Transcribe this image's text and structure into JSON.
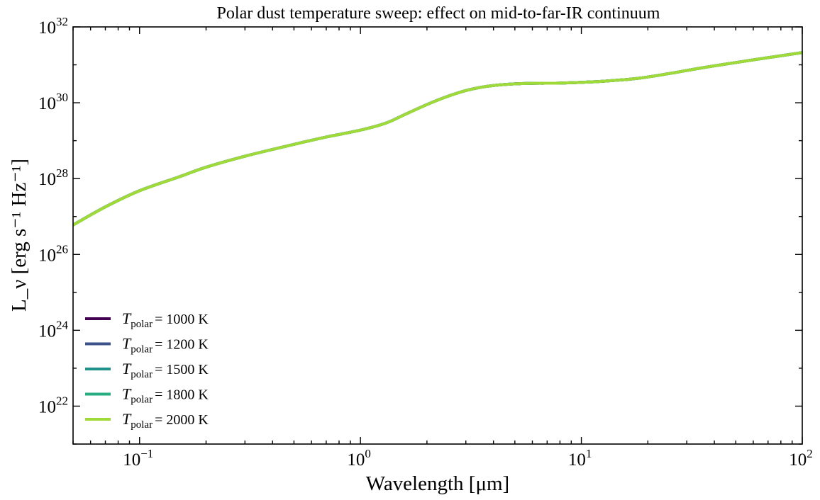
{
  "chart_data": {
    "type": "line",
    "title": "Polar dust temperature sweep: effect on mid-to-far-IR continuum",
    "xlabel": "Wavelength [μm]",
    "ylabel": "L_ν [erg s⁻¹ Hz⁻¹]",
    "xscale": "log",
    "yscale": "log",
    "xlim": [
      0.05,
      100
    ],
    "ylim": [
      1e+21,
      1e+32
    ],
    "x_ticks": [
      {
        "value": 0.1,
        "base": "10",
        "exp": "−1"
      },
      {
        "value": 1,
        "base": "10",
        "exp": "0"
      },
      {
        "value": 10,
        "base": "10",
        "exp": "1"
      },
      {
        "value": 100,
        "base": "10",
        "exp": "2"
      }
    ],
    "y_ticks": [
      {
        "value": 1e+22,
        "base": "10",
        "exp": "22"
      },
      {
        "value": 1e+24,
        "base": "10",
        "exp": "24"
      },
      {
        "value": 1e+26,
        "base": "10",
        "exp": "26"
      },
      {
        "value": 1e+28,
        "base": "10",
        "exp": "28"
      },
      {
        "value": 1e+30,
        "base": "10",
        "exp": "30"
      },
      {
        "value": 1e+32,
        "base": "10",
        "exp": "32"
      }
    ],
    "grid": false,
    "legend_position": "lower-left",
    "x": [
      0.05,
      0.07,
      0.1,
      0.15,
      0.2,
      0.3,
      0.5,
      0.7,
      1.0,
      1.3,
      1.6,
      2.0,
      2.5,
      3.0,
      3.5,
      4.0,
      5.0,
      6.0,
      8.0,
      10,
      13,
      18,
      25,
      35,
      50,
      70,
      100
    ],
    "series": [
      {
        "name": "T_polar = 1000 K",
        "legend_var": "T",
        "legend_sub": "polar",
        "legend_value": "= 1000 K",
        "color": "#440154",
        "values": [
          6e+26,
          1.8e+27,
          4.8e+27,
          1.1e+28,
          2e+28,
          3.9e+28,
          8e+28,
          1.25e+29,
          1.9e+29,
          2.9e+29,
          5e+29,
          9e+29,
          1.5e+30,
          2.1e+30,
          2.55e+30,
          2.85e+30,
          3.15e+30,
          3.25e+30,
          3.3e+30,
          3.45e+30,
          3.75e+30,
          4.4e+30,
          5.9e+30,
          8.3e+30,
          1.15e+31,
          1.55e+31,
          2.1e+31
        ]
      },
      {
        "name": "T_polar = 1200 K",
        "legend_var": "T",
        "legend_sub": "polar",
        "legend_value": "= 1200 K",
        "color": "#3b528b",
        "values": [
          6e+26,
          1.8e+27,
          4.8e+27,
          1.1e+28,
          2e+28,
          3.9e+28,
          8e+28,
          1.25e+29,
          1.9e+29,
          2.9e+29,
          5e+29,
          9e+29,
          1.5e+30,
          2.1e+30,
          2.55e+30,
          2.85e+30,
          3.15e+30,
          3.25e+30,
          3.3e+30,
          3.45e+30,
          3.75e+30,
          4.4e+30,
          5.9e+30,
          8.3e+30,
          1.15e+31,
          1.55e+31,
          2.1e+31
        ]
      },
      {
        "name": "T_polar = 1500 K",
        "legend_var": "T",
        "legend_sub": "polar",
        "legend_value": "= 1500 K",
        "color": "#21918c",
        "values": [
          6e+26,
          1.8e+27,
          4.8e+27,
          1.1e+28,
          2e+28,
          3.9e+28,
          8e+28,
          1.25e+29,
          1.9e+29,
          2.9e+29,
          5e+29,
          9e+29,
          1.5e+30,
          2.1e+30,
          2.55e+30,
          2.85e+30,
          3.15e+30,
          3.25e+30,
          3.3e+30,
          3.45e+30,
          3.75e+30,
          4.4e+30,
          5.9e+30,
          8.3e+30,
          1.15e+31,
          1.55e+31,
          2.1e+31
        ]
      },
      {
        "name": "T_polar = 1800 K",
        "legend_var": "T",
        "legend_sub": "polar",
        "legend_value": "= 1800 K",
        "color": "#27ad81",
        "values": [
          6e+26,
          1.8e+27,
          4.8e+27,
          1.1e+28,
          2e+28,
          3.9e+28,
          8e+28,
          1.25e+29,
          1.9e+29,
          2.9e+29,
          5e+29,
          9e+29,
          1.5e+30,
          2.1e+30,
          2.55e+30,
          2.85e+30,
          3.15e+30,
          3.25e+30,
          3.3e+30,
          3.45e+30,
          3.75e+30,
          4.4e+30,
          5.9e+30,
          8.3e+30,
          1.15e+31,
          1.55e+31,
          2.1e+31
        ]
      },
      {
        "name": "T_polar = 2000 K",
        "legend_var": "T",
        "legend_sub": "polar",
        "legend_value": "= 2000 K",
        "color": "#a0da39",
        "values": [
          6e+26,
          1.8e+27,
          4.8e+27,
          1.1e+28,
          2e+28,
          3.9e+28,
          8e+28,
          1.25e+29,
          1.9e+29,
          2.9e+29,
          5e+29,
          9e+29,
          1.5e+30,
          2.1e+30,
          2.55e+30,
          2.85e+30,
          3.15e+30,
          3.25e+30,
          3.3e+30,
          3.45e+30,
          3.75e+30,
          4.4e+30,
          5.9e+30,
          8.3e+30,
          1.15e+31,
          1.55e+31,
          2.1e+31
        ]
      }
    ]
  }
}
